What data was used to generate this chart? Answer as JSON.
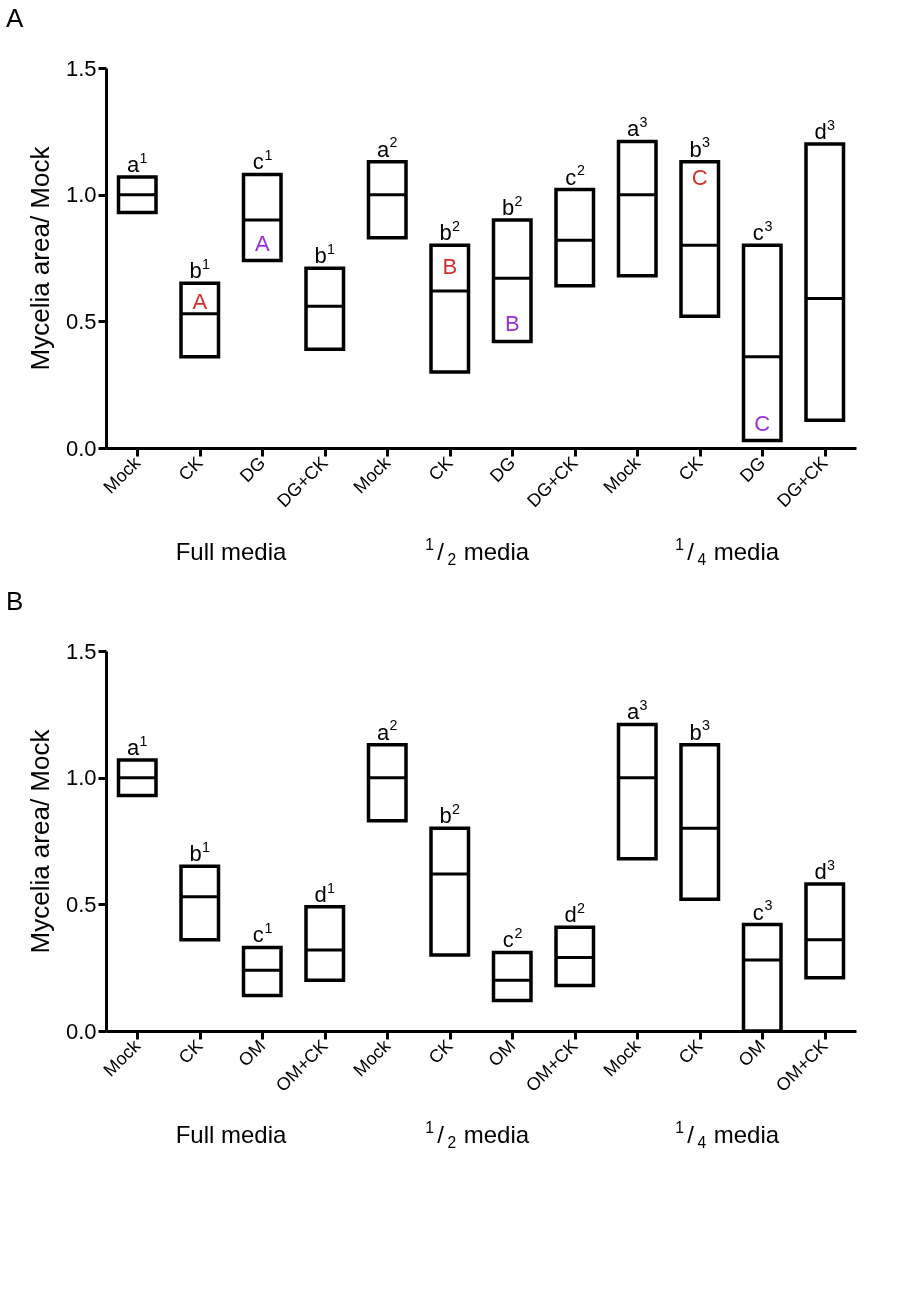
{
  "chart_data": [
    {
      "type": "box",
      "title": "A",
      "ylabel": "Mycelia area/ Mock",
      "ylim": [
        0,
        1.5
      ],
      "yticks": [
        {
          "value": 0,
          "label": "0.0"
        },
        {
          "value": 0.5,
          "label": "0.5"
        },
        {
          "value": 1,
          "label": "1.0"
        },
        {
          "value": 1.5,
          "label": "1.5"
        }
      ],
      "grid": false,
      "categories": [
        "Mock",
        "CK",
        "DG",
        "DG+CK",
        "Mock",
        "CK",
        "DG",
        "DG+CK",
        "Mock",
        "CK",
        "DG",
        "DG+CK"
      ],
      "boxes": [
        {
          "low": 0.93,
          "q1": 0.93,
          "median": 1.0,
          "q3": 1.07,
          "high": 1.07
        },
        {
          "low": 0.36,
          "q1": 0.36,
          "median": 0.53,
          "q3": 0.65,
          "high": 0.65
        },
        {
          "low": 0.74,
          "q1": 0.74,
          "median": 0.9,
          "q3": 1.08,
          "high": 1.08
        },
        {
          "low": 0.39,
          "q1": 0.39,
          "median": 0.56,
          "q3": 0.71,
          "high": 0.71
        },
        {
          "low": 0.83,
          "q1": 0.83,
          "median": 1.0,
          "q3": 1.13,
          "high": 1.13
        },
        {
          "low": 0.3,
          "q1": 0.3,
          "median": 0.62,
          "q3": 0.8,
          "high": 0.8
        },
        {
          "low": 0.42,
          "q1": 0.42,
          "median": 0.67,
          "q3": 0.9,
          "high": 0.9
        },
        {
          "low": 0.64,
          "q1": 0.64,
          "median": 0.82,
          "q3": 1.02,
          "high": 1.02
        },
        {
          "low": 0.68,
          "q1": 0.68,
          "median": 1.0,
          "q3": 1.21,
          "high": 1.21
        },
        {
          "low": 0.52,
          "q1": 0.52,
          "median": 0.8,
          "q3": 1.13,
          "high": 1.13
        },
        {
          "low": 0.03,
          "q1": 0.03,
          "median": 0.36,
          "q3": 0.8,
          "high": 0.8
        },
        {
          "low": 0.11,
          "q1": 0.11,
          "median": 0.59,
          "q3": 1.2,
          "high": 1.2
        }
      ],
      "annotations": [
        "Full media",
        "$^{1}$/$_{2}$ media",
        "$^{1}$/$_{4}$ media",
        "a$^{1}$",
        "b$^{1}$",
        "c$^{1}$",
        "b$^{1}$",
        "a$^{2}$",
        "b$^{2}$",
        "b$^{2}$",
        "c$^{2}$",
        "a$^{3}$",
        "b$^{3}$",
        "c$^{3}$",
        "d$^{3}$",
        "A",
        "A",
        "B",
        "B",
        "C",
        "C"
      ]
    },
    {
      "type": "box",
      "title": "B",
      "ylabel": "Mycelia area/ Mock",
      "ylim": [
        0,
        1.5
      ],
      "yticks": [
        {
          "value": 0,
          "label": "0.0"
        },
        {
          "value": 0.5,
          "label": "0.5"
        },
        {
          "value": 1,
          "label": "1.0"
        },
        {
          "value": 1.5,
          "label": "1.5"
        }
      ],
      "grid": false,
      "categories": [
        "Mock",
        "CK",
        "OM",
        "OM+CK",
        "Mock",
        "CK",
        "OM",
        "OM+CK",
        "Mock",
        "CK",
        "OM",
        "OM+CK"
      ],
      "boxes": [
        {
          "low": 0.93,
          "q1": 0.93,
          "median": 1.0,
          "q3": 1.07,
          "high": 1.07
        },
        {
          "low": 0.36,
          "q1": 0.36,
          "median": 0.53,
          "q3": 0.65,
          "high": 0.65
        },
        {
          "low": 0.14,
          "q1": 0.14,
          "median": 0.24,
          "q3": 0.33,
          "high": 0.33
        },
        {
          "low": 0.2,
          "q1": 0.2,
          "median": 0.32,
          "q3": 0.49,
          "high": 0.49
        },
        {
          "low": 0.83,
          "q1": 0.83,
          "median": 1.0,
          "q3": 1.13,
          "high": 1.13
        },
        {
          "low": 0.3,
          "q1": 0.3,
          "median": 0.62,
          "q3": 0.8,
          "high": 0.8
        },
        {
          "low": 0.12,
          "q1": 0.12,
          "median": 0.2,
          "q3": 0.31,
          "high": 0.31
        },
        {
          "low": 0.18,
          "q1": 0.18,
          "median": 0.29,
          "q3": 0.41,
          "high": 0.41
        },
        {
          "low": 0.68,
          "q1": 0.68,
          "median": 1.0,
          "q3": 1.21,
          "high": 1.21
        },
        {
          "low": 0.52,
          "q1": 0.52,
          "median": 0.8,
          "q3": 1.13,
          "high": 1.13
        },
        {
          "low": 0.0,
          "q1": 0.0,
          "median": 0.28,
          "q3": 0.42,
          "high": 0.42
        },
        {
          "low": 0.21,
          "q1": 0.21,
          "median": 0.36,
          "q3": 0.58,
          "high": 0.58
        }
      ],
      "annotations": [
        "Full media",
        "$^{1}$/$_{2}$ media",
        "$^{1}$/$_{4}$ media",
        "a$^{1}$",
        "b$^{1}$",
        "c$^{1}$",
        "d$^{1}$",
        "a$^{2}$",
        "b$^{2}$",
        "c$^{2}$",
        "d$^{2}$",
        "a$^{3}$",
        "b$^{3}$",
        "c$^{3}$",
        "d$^{3}$"
      ]
    }
  ]
}
